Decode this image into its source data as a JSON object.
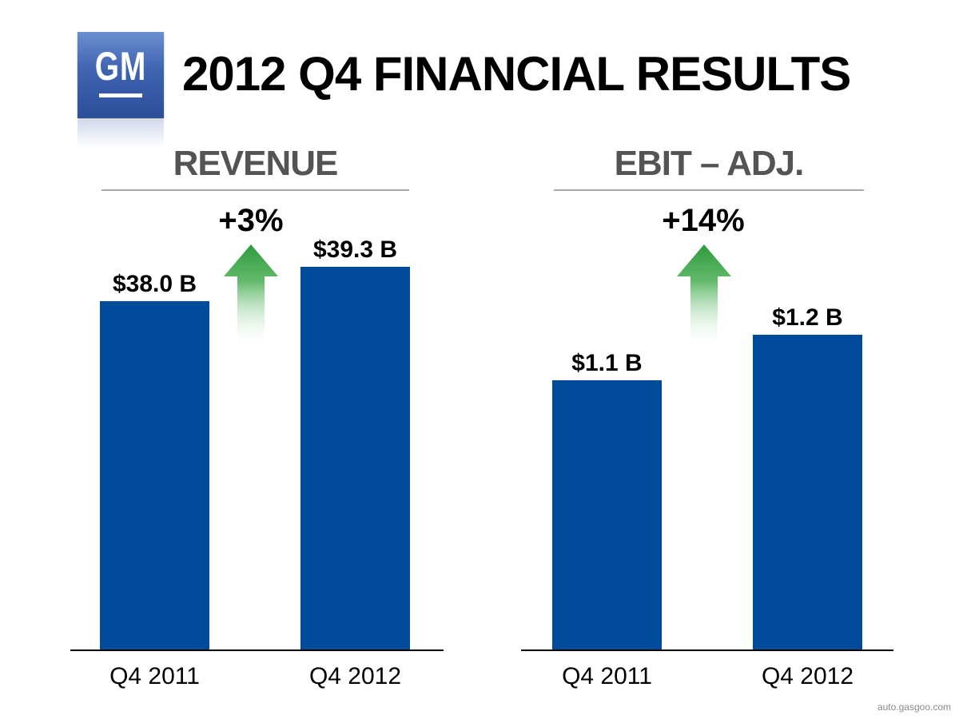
{
  "header": {
    "logo_text": "GM",
    "title": "2012 Q4 FINANCIAL RESULTS"
  },
  "colors": {
    "bar": "#004b99",
    "arrow": "#2e9a3e",
    "title_text": "#545454"
  },
  "icons": {
    "logo": "gm-logo",
    "growth": "up-arrow-icon"
  },
  "watermark": "auto.gasgoo.com",
  "chart_data": [
    {
      "type": "bar",
      "title": "REVENUE",
      "categories": [
        "Q4 2011",
        "Q4 2012"
      ],
      "values": [
        38.0,
        39.3
      ],
      "value_labels": [
        "$38.0 B",
        "$39.3 B"
      ],
      "change_label": "+3%",
      "unit": "$ B",
      "grid": false,
      "legend": "none"
    },
    {
      "type": "bar",
      "title": "EBIT – ADJ.",
      "categories": [
        "Q4 2011",
        "Q4 2012"
      ],
      "values": [
        1.1,
        1.2
      ],
      "value_labels": [
        "$1.1 B",
        "$1.2 B"
      ],
      "change_label": "+14%",
      "unit": "$ B",
      "grid": false,
      "legend": "none"
    }
  ]
}
